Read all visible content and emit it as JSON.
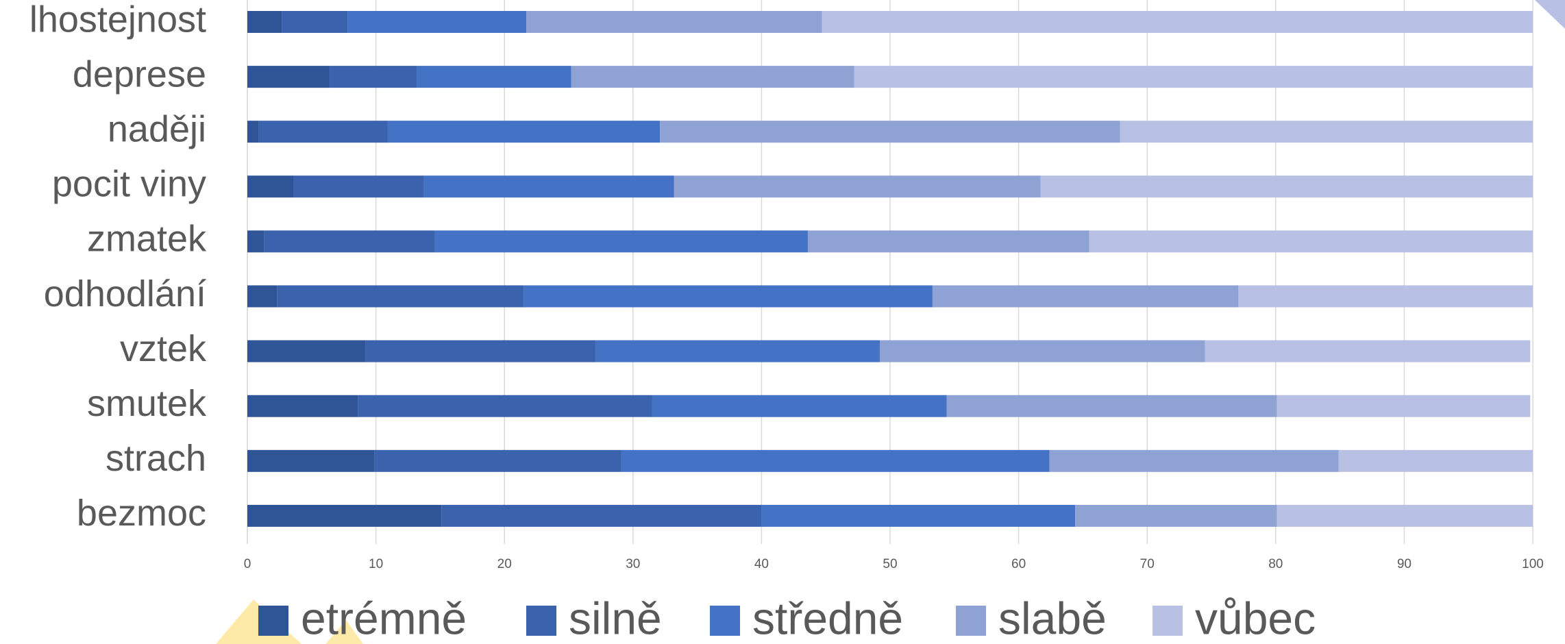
{
  "chart_data": {
    "type": "stacked_barh",
    "categories": [
      "lhostejnost",
      "deprese",
      "naději",
      "pocit viny",
      "zmatek",
      "odhodlání",
      "vztek",
      "smutek",
      "strach",
      "bezmoc"
    ],
    "series": [
      {
        "name": "etrémně",
        "color": "#2f5597",
        "values": [
          2.7,
          6.4,
          0.9,
          3.6,
          1.3,
          2.3,
          9.2,
          8.6,
          9.9,
          15.1
        ]
      },
      {
        "name": "silně",
        "color": "#3a62ad",
        "values": [
          5.1,
          6.8,
          10.0,
          10.1,
          13.3,
          19.2,
          17.9,
          22.9,
          19.2,
          24.9
        ]
      },
      {
        "name": "středně",
        "color": "#4472c4",
        "values": [
          13.9,
          12.0,
          21.2,
          19.5,
          29.0,
          31.8,
          22.1,
          22.9,
          33.3,
          24.4
        ]
      },
      {
        "name": "slabě",
        "color": "#8fa2d4",
        "values": [
          23.0,
          22.0,
          35.8,
          28.5,
          21.9,
          23.8,
          25.3,
          25.7,
          22.5,
          15.7
        ]
      },
      {
        "name": "vůbec",
        "color": "#b8c1e3",
        "values": [
          55.3,
          52.8,
          32.1,
          38.3,
          34.5,
          22.9,
          25.3,
          19.7,
          15.1,
          19.9
        ]
      }
    ],
    "xlim": [
      0,
      100
    ],
    "xticks": [
      0,
      10,
      20,
      30,
      40,
      50,
      60,
      70,
      80,
      90,
      100
    ],
    "grid": true,
    "legend": "bottom"
  }
}
